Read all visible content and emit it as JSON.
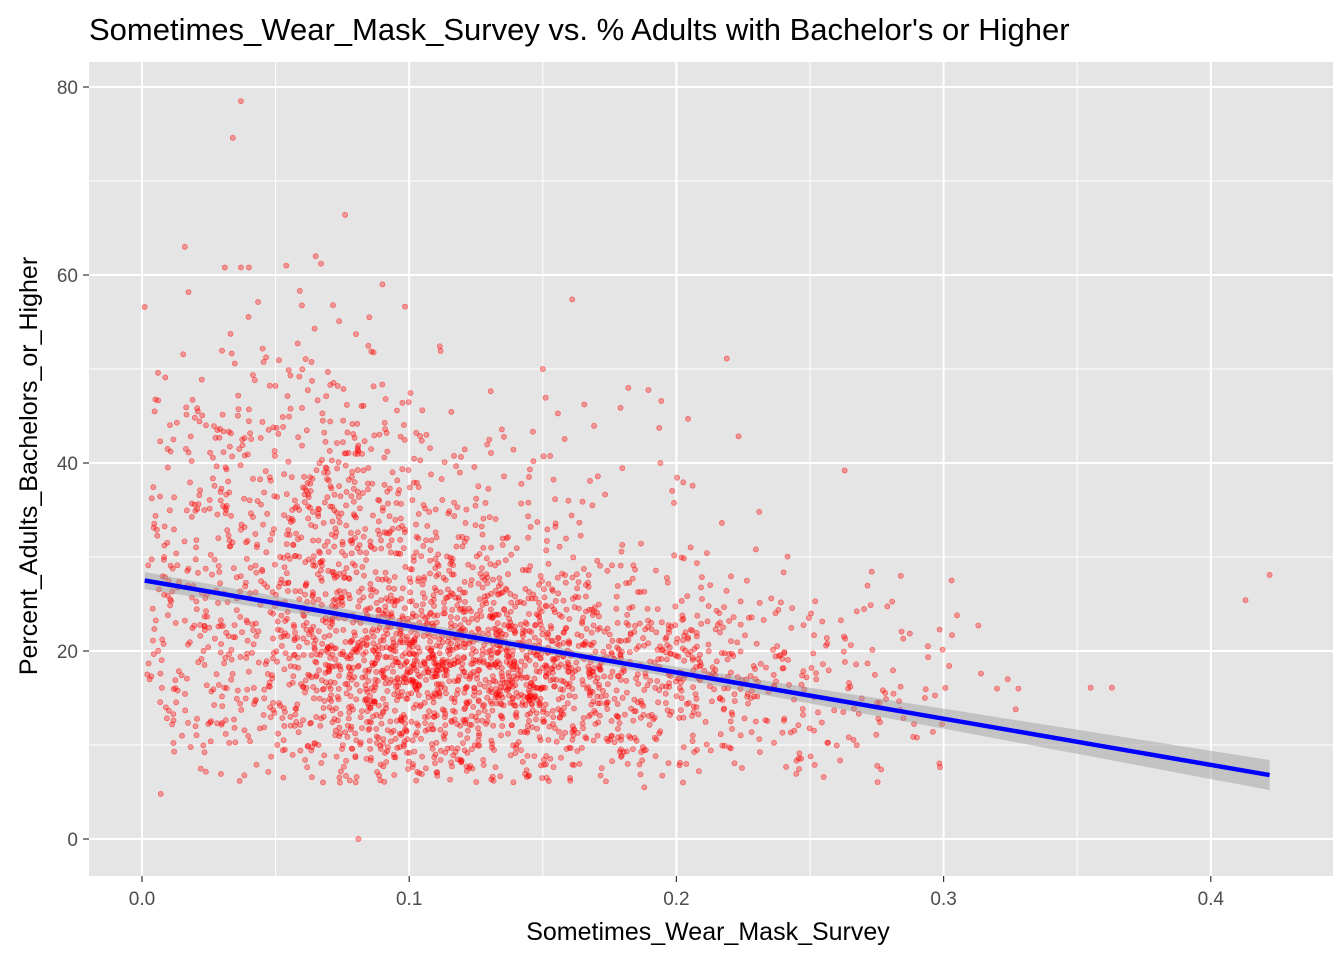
{
  "chart_data": {
    "type": "scatter",
    "title": "Sometimes_Wear_Mask_Survey vs. % Adults with Bachelor's or Higher",
    "xlabel": "Sometimes_Wear_Mask_Survey",
    "ylabel": "Percent_Adults_Bachelors_or_Higher",
    "xlim": [
      -0.02,
      0.44
    ],
    "ylim": [
      -4,
      83
    ],
    "x_ticks": [
      0.0,
      0.1,
      0.2,
      0.3,
      0.4
    ],
    "x_tick_labels": [
      "0.0",
      "0.1",
      "0.2",
      "0.3",
      "0.4"
    ],
    "y_ticks": [
      0,
      20,
      40,
      60,
      80
    ],
    "y_tick_labels": [
      "0",
      "20",
      "40",
      "60",
      "80"
    ],
    "grid": true,
    "legend": "none",
    "point_color": "#ff0000",
    "fit_line": {
      "method": "linear",
      "color": "#0000ff",
      "band_color": "#999999",
      "points": [
        {
          "x": 0.001,
          "y": 27.5
        },
        {
          "x": 0.422,
          "y": 6.8
        }
      ],
      "ci_halfwidth": [
        {
          "x": 0.001,
          "y": 0.9
        },
        {
          "x": 0.15,
          "y": 0.4
        },
        {
          "x": 0.422,
          "y": 1.6
        }
      ]
    },
    "outliers": [
      {
        "x": 0.001,
        "y": 56.6
      },
      {
        "x": 0.037,
        "y": 78.5
      },
      {
        "x": 0.034,
        "y": 74.6
      },
      {
        "x": 0.076,
        "y": 66.4
      },
      {
        "x": 0.016,
        "y": 63.0
      },
      {
        "x": 0.065,
        "y": 62.0
      },
      {
        "x": 0.067,
        "y": 61.2
      },
      {
        "x": 0.054,
        "y": 61.0
      },
      {
        "x": 0.037,
        "y": 60.8
      },
      {
        "x": 0.04,
        "y": 60.8
      },
      {
        "x": 0.031,
        "y": 60.8
      },
      {
        "x": 0.09,
        "y": 59.0
      },
      {
        "x": 0.161,
        "y": 57.4
      },
      {
        "x": 0.006,
        "y": 49.6
      },
      {
        "x": 0.15,
        "y": 50.0
      },
      {
        "x": 0.081,
        "y": 0.0
      },
      {
        "x": 0.007,
        "y": 4.8
      },
      {
        "x": 0.188,
        "y": 5.5
      },
      {
        "x": 0.263,
        "y": 39.2
      },
      {
        "x": 0.182,
        "y": 48.0
      },
      {
        "x": 0.303,
        "y": 27.5
      },
      {
        "x": 0.305,
        "y": 23.8
      },
      {
        "x": 0.314,
        "y": 17.6
      },
      {
        "x": 0.32,
        "y": 16.0
      },
      {
        "x": 0.324,
        "y": 17.0
      },
      {
        "x": 0.328,
        "y": 16.0
      },
      {
        "x": 0.327,
        "y": 13.8
      },
      {
        "x": 0.355,
        "y": 16.1
      },
      {
        "x": 0.363,
        "y": 16.1
      },
      {
        "x": 0.413,
        "y": 25.4
      },
      {
        "x": 0.422,
        "y": 28.1
      },
      {
        "x": 0.284,
        "y": 28.0
      },
      {
        "x": 0.293,
        "y": 15.0
      },
      {
        "x": 0.296,
        "y": 11.4
      },
      {
        "x": 0.29,
        "y": 10.8
      },
      {
        "x": 0.231,
        "y": 34.8
      },
      {
        "x": 0.194,
        "y": 40.0
      },
      {
        "x": 0.002,
        "y": 17.5
      },
      {
        "x": 0.004,
        "y": 24.5
      },
      {
        "x": 0.012,
        "y": 9.3
      }
    ],
    "clusters": [
      {
        "cx": 0.115,
        "cy": 18.0,
        "sx": 0.042,
        "sy": 6.0,
        "n": 1450
      },
      {
        "cx": 0.072,
        "cy": 28.0,
        "sx": 0.035,
        "sy": 10.0,
        "n": 650
      },
      {
        "cx": 0.185,
        "cy": 18.0,
        "sx": 0.035,
        "sy": 5.5,
        "n": 380
      },
      {
        "cx": 0.245,
        "cy": 17.0,
        "sx": 0.03,
        "sy": 5.0,
        "n": 160
      },
      {
        "cx": 0.045,
        "cy": 42.0,
        "sx": 0.025,
        "sy": 8.0,
        "n": 140
      },
      {
        "cx": 0.13,
        "cy": 35.0,
        "sx": 0.045,
        "sy": 7.0,
        "n": 120
      },
      {
        "cx": 0.02,
        "cy": 22.0,
        "sx": 0.012,
        "sy": 8.0,
        "n": 60
      }
    ]
  }
}
